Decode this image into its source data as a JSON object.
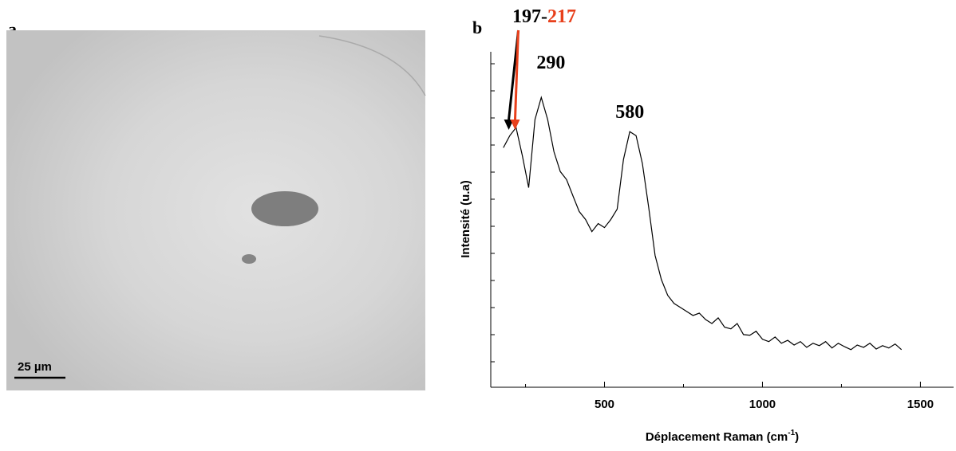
{
  "panel_a": {
    "label": "a",
    "scale_bar": "25 µm"
  },
  "chart_data": {
    "type": "line",
    "panel_label": "b",
    "ylabel": "Intensité (u.a)",
    "xlabel": [
      "Déplacement Raman (cm",
      "-1",
      ")"
    ],
    "color": "#000000",
    "xlim": [
      140,
      1600
    ],
    "ylim": [
      0,
      100
    ],
    "xticks": [
      500,
      1000,
      1500
    ],
    "xminor_ticks": [
      250,
      750,
      1250
    ],
    "x": [
      180,
      200,
      220,
      240,
      260,
      280,
      300,
      320,
      340,
      360,
      380,
      400,
      420,
      440,
      460,
      480,
      500,
      520,
      540,
      560,
      580,
      600,
      620,
      640,
      660,
      680,
      700,
      720,
      740,
      760,
      780,
      800,
      820,
      840,
      860,
      880,
      900,
      920,
      940,
      960,
      980,
      1000,
      1020,
      1040,
      1060,
      1080,
      1100,
      1120,
      1140,
      1160,
      1180,
      1200,
      1220,
      1240,
      1260,
      1280,
      1300,
      1320,
      1340,
      1360,
      1380,
      1400,
      1420,
      1440
    ],
    "values": [
      71.4,
      75,
      77.4,
      69,
      59.5,
      79.8,
      86.4,
      79.8,
      70.2,
      64.3,
      61.9,
      57.1,
      52.4,
      50,
      46.4,
      48.8,
      47.6,
      50,
      53.1,
      67.9,
      76.2,
      75,
      66.7,
      53.6,
      39.3,
      32.1,
      27.4,
      25,
      23.8,
      22.6,
      21.4,
      22.1,
      20.2,
      19,
      20.7,
      17.9,
      17.4,
      19,
      15.7,
      15.5,
      16.7,
      14.3,
      13.6,
      15,
      13.1,
      14,
      12.6,
      13.6,
      11.9,
      13.1,
      12.4,
      13.6,
      11.7,
      13.1,
      12.1,
      11.2,
      12.6,
      11.9,
      13.1,
      11.4,
      12.4,
      11.7,
      12.9,
      11.2
    ],
    "annotations": [
      {
        "x": 197,
        "text": "197-",
        "color": "#000000"
      },
      {
        "x": 217,
        "text": "217",
        "color": "#e8401c"
      },
      {
        "x": 290,
        "text": "290"
      },
      {
        "x": 580,
        "text": "580"
      }
    ]
  }
}
